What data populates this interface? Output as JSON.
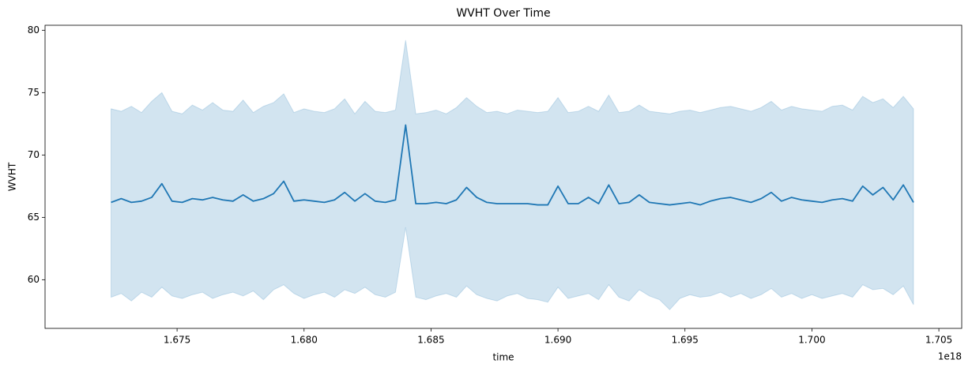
{
  "chart_data": {
    "type": "line",
    "title": "WVHT Over Time",
    "x_label": "time",
    "y_label": "WVHT",
    "x_offset_label": "1e18",
    "x": [
      1.6724,
      1.6728,
      1.6732,
      1.6736,
      1.674,
      1.6744,
      1.6748,
      1.6752,
      1.6756,
      1.676,
      1.6764,
      1.6768,
      1.6772,
      1.6776,
      1.678,
      1.6784,
      1.6788,
      1.6792,
      1.6796,
      1.68,
      1.6804,
      1.6808,
      1.6812,
      1.6816,
      1.682,
      1.6824,
      1.6828,
      1.6832,
      1.6836,
      1.684,
      1.6844,
      1.6848,
      1.6852,
      1.6856,
      1.686,
      1.6864,
      1.6868,
      1.6872,
      1.6876,
      1.688,
      1.6884,
      1.6888,
      1.6892,
      1.6896,
      1.69,
      1.6904,
      1.6908,
      1.6912,
      1.6916,
      1.692,
      1.6924,
      1.6928,
      1.6932,
      1.6936,
      1.694,
      1.6944,
      1.6948,
      1.6952,
      1.6956,
      1.696,
      1.6964,
      1.6968,
      1.6972,
      1.6976,
      1.698,
      1.6984,
      1.6988,
      1.6992,
      1.6996,
      1.7,
      1.7004,
      1.7008,
      1.7012,
      1.7016,
      1.702,
      1.7024,
      1.7028,
      1.7032,
      1.7036,
      1.704
    ],
    "series": [
      {
        "color": "#1f77b4",
        "band_opacity": 0.2,
        "values": [
          66.2,
          66.5,
          66.2,
          66.3,
          66.6,
          67.7,
          66.3,
          66.2,
          66.5,
          66.4,
          66.6,
          66.4,
          66.3,
          66.8,
          66.3,
          66.5,
          66.9,
          67.9,
          66.3,
          66.4,
          66.3,
          66.2,
          66.4,
          67.0,
          66.3,
          66.9,
          66.3,
          66.2,
          66.4,
          72.4,
          66.1,
          66.1,
          66.2,
          66.1,
          66.4,
          67.4,
          66.6,
          66.2,
          66.1,
          66.1,
          66.1,
          66.1,
          66.0,
          66.0,
          67.5,
          66.1,
          66.1,
          66.6,
          66.1,
          67.6,
          66.1,
          66.2,
          66.8,
          66.2,
          66.1,
          66.0,
          66.1,
          66.2,
          66.0,
          66.3,
          66.5,
          66.6,
          66.4,
          66.2,
          66.5,
          67.0,
          66.3,
          66.6,
          66.4,
          66.3,
          66.2,
          66.4,
          66.5,
          66.3,
          67.5,
          66.8,
          67.4,
          66.4,
          67.6,
          66.2
        ],
        "ci_upper": [
          73.7,
          73.5,
          73.9,
          73.4,
          74.3,
          75.0,
          73.5,
          73.3,
          74.0,
          73.6,
          74.2,
          73.6,
          73.5,
          74.4,
          73.4,
          73.9,
          74.2,
          74.9,
          73.4,
          73.7,
          73.5,
          73.4,
          73.7,
          74.5,
          73.3,
          74.3,
          73.5,
          73.4,
          73.6,
          79.2,
          73.3,
          73.4,
          73.6,
          73.3,
          73.8,
          74.6,
          73.9,
          73.4,
          73.5,
          73.3,
          73.6,
          73.5,
          73.4,
          73.5,
          74.6,
          73.4,
          73.5,
          73.9,
          73.5,
          74.8,
          73.4,
          73.5,
          74.0,
          73.5,
          73.4,
          73.3,
          73.5,
          73.6,
          73.4,
          73.6,
          73.8,
          73.9,
          73.7,
          73.5,
          73.8,
          74.3,
          73.6,
          73.9,
          73.7,
          73.6,
          73.5,
          73.9,
          74.0,
          73.6,
          74.7,
          74.2,
          74.5,
          73.8,
          74.7,
          73.7
        ],
        "ci_lower": [
          58.6,
          58.9,
          58.3,
          59.0,
          58.6,
          59.4,
          58.7,
          58.5,
          58.8,
          59.0,
          58.5,
          58.8,
          59.0,
          58.7,
          59.1,
          58.4,
          59.2,
          59.6,
          58.9,
          58.5,
          58.8,
          59.0,
          58.6,
          59.2,
          58.9,
          59.4,
          58.8,
          58.6,
          59.0,
          64.2,
          58.6,
          58.4,
          58.7,
          58.9,
          58.6,
          59.5,
          58.8,
          58.5,
          58.3,
          58.7,
          58.9,
          58.5,
          58.4,
          58.2,
          59.4,
          58.5,
          58.7,
          58.9,
          58.4,
          59.6,
          58.6,
          58.3,
          59.2,
          58.7,
          58.4,
          57.6,
          58.5,
          58.8,
          58.6,
          58.7,
          59.0,
          58.6,
          58.9,
          58.5,
          58.8,
          59.3,
          58.6,
          58.9,
          58.5,
          58.8,
          58.5,
          58.7,
          58.9,
          58.6,
          59.6,
          59.2,
          59.3,
          58.8,
          59.5,
          58.0
        ]
      }
    ],
    "xlim": [
      1.6698,
      1.7059
    ],
    "ylim": [
      56.1,
      80.4
    ],
    "xticks": [
      1.675,
      {
        "value": 1.68,
        "label": "1.680"
      },
      1.685,
      {
        "value": 1.69,
        "label": "1.690"
      },
      1.695,
      {
        "value": 1.7,
        "label": "1.700"
      },
      1.705
    ],
    "yticks": [
      60,
      65,
      70,
      75,
      80
    ],
    "grid": false
  }
}
